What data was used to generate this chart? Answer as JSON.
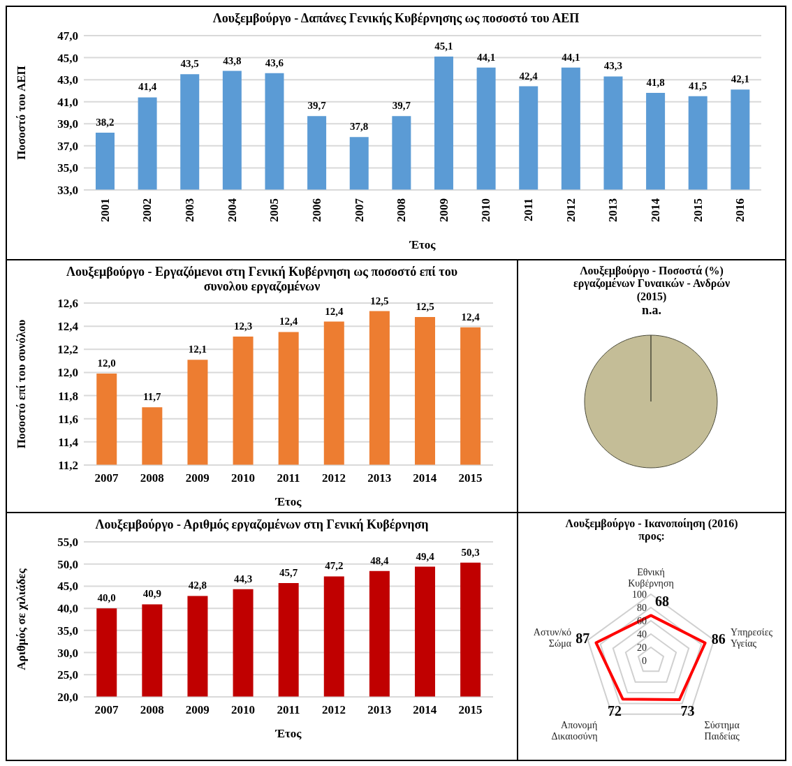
{
  "chart_data": [
    {
      "type": "bar",
      "title": "Λουξεμβούργο - Δαπάνες Γενικής Κυβέρνησης ως ποσοστό του ΑΕΠ",
      "xlabel": "Έτος",
      "ylabel": "Ποσοστό του ΑΕΠ",
      "categories": [
        "2001",
        "2002",
        "2003",
        "2004",
        "2005",
        "2006",
        "2007",
        "2008",
        "2009",
        "2010",
        "2011",
        "2012",
        "2013",
        "2014",
        "2015",
        "2016"
      ],
      "values": [
        38.2,
        41.4,
        43.5,
        43.8,
        43.6,
        39.7,
        37.8,
        39.7,
        45.1,
        44.1,
        42.4,
        44.1,
        43.3,
        41.8,
        41.5,
        42.1
      ],
      "value_labels": [
        "38,2",
        "41,4",
        "43,5",
        "43,8",
        "43,6",
        "39,7",
        "37,8",
        "39,7",
        "45,1",
        "44,1",
        "42,4",
        "44,1",
        "43,3",
        "41,8",
        "41,5",
        "42,1"
      ],
      "color": "#5b9bd5",
      "ylim": [
        33,
        47
      ],
      "yticks": [
        {
          "value": 33,
          "label": "33,0"
        },
        {
          "value": 35,
          "label": "35,0"
        },
        {
          "value": 37,
          "label": "37,0"
        },
        {
          "value": 39,
          "label": "39,0"
        },
        {
          "value": 41,
          "label": "41,0"
        },
        {
          "value": 43,
          "label": "43,0"
        },
        {
          "value": 45,
          "label": "45,0"
        },
        {
          "value": 47,
          "label": "47,0"
        }
      ],
      "grid": "y"
    },
    {
      "type": "bar",
      "title": "Λουξεμβούργο -  Εργαζόμενοι στη Γενική Κυβέρνηση ως ποσοστό επί του συνολου εργαζομένων",
      "xlabel": "Έτος",
      "ylabel": "Ποσοστό επί του συνόλου",
      "categories": [
        "2007",
        "2008",
        "2009",
        "2010",
        "2011",
        "2012",
        "2013",
        "2014",
        "2015"
      ],
      "values": [
        11.99,
        11.7,
        12.11,
        12.31,
        12.35,
        12.44,
        12.53,
        12.48,
        12.39
      ],
      "value_labels": [
        "12,0",
        "11,7",
        "12,1",
        "12,3",
        "12,4",
        "12,4",
        "12,5",
        "12,5",
        "12,4"
      ],
      "color": "#ed7d31",
      "ylim": [
        11.2,
        12.6
      ],
      "yticks": [
        {
          "value": 11.2,
          "label": "11,2"
        },
        {
          "value": 11.4,
          "label": "11,4"
        },
        {
          "value": 11.6,
          "label": "11,6"
        },
        {
          "value": 11.8,
          "label": "11,8"
        },
        {
          "value": 12,
          "label": "12,0"
        },
        {
          "value": 12.2,
          "label": "12,2"
        },
        {
          "value": 12.4,
          "label": "12,4"
        },
        {
          "value": 12.6,
          "label": "12,6"
        }
      ],
      "grid": "y"
    },
    {
      "type": "pie",
      "title": "Λουξεμβούργο - Ποσοστά (%) εργαζομένων Γυναικών - Ανδρών (2015)",
      "annotations": [
        "n.a."
      ],
      "categories": [
        null
      ],
      "values": [
        100
      ],
      "colors": [
        "#c4bd97"
      ]
    },
    {
      "type": "bar",
      "title": "Λουξεμβούργο -  Αριθμός εργαζομένων στη Γενική Κυβέρνηση",
      "xlabel": "Έτος",
      "ylabel": "Αριθμός σε χιλιάδες",
      "categories": [
        "2007",
        "2008",
        "2009",
        "2010",
        "2011",
        "2012",
        "2013",
        "2014",
        "2015"
      ],
      "values": [
        40.0,
        40.9,
        42.8,
        44.3,
        45.7,
        47.2,
        48.4,
        49.4,
        50.3
      ],
      "value_labels": [
        "40,0",
        "40,9",
        "42,8",
        "44,3",
        "45,7",
        "47,2",
        "48,4",
        "49,4",
        "50,3"
      ],
      "color": "#c00000",
      "ylim": [
        20,
        55
      ],
      "yticks": [
        {
          "value": 20,
          "label": "20,0"
        },
        {
          "value": 25,
          "label": "25,0"
        },
        {
          "value": 30,
          "label": "30,0"
        },
        {
          "value": 35,
          "label": "35,0"
        },
        {
          "value": 40,
          "label": "40,0"
        },
        {
          "value": 45,
          "label": "45,0"
        },
        {
          "value": 50,
          "label": "50,0"
        },
        {
          "value": 55,
          "label": "55,0"
        }
      ],
      "grid": "y"
    },
    {
      "type": "radar",
      "title": "Λουξεμβούργο - Ικανοποίηση (2016) προς:",
      "categories": [
        "Εθνική Κυβέρνηση",
        "Υπηρεσίες Υγείας",
        "Σύστημα Παιδείας",
        "Απονομή Δικαιοσύνη",
        "Αστυν/κό Σώμα"
      ],
      "series": [
        {
          "color": "#ff0000",
          "values": [
            68,
            86,
            73,
            72,
            87
          ]
        }
      ],
      "ylim": [
        0,
        100
      ],
      "yticks": [
        0,
        20,
        40,
        60,
        80,
        100
      ],
      "grid": true,
      "data_labels": true,
      "marker": "none"
    }
  ]
}
